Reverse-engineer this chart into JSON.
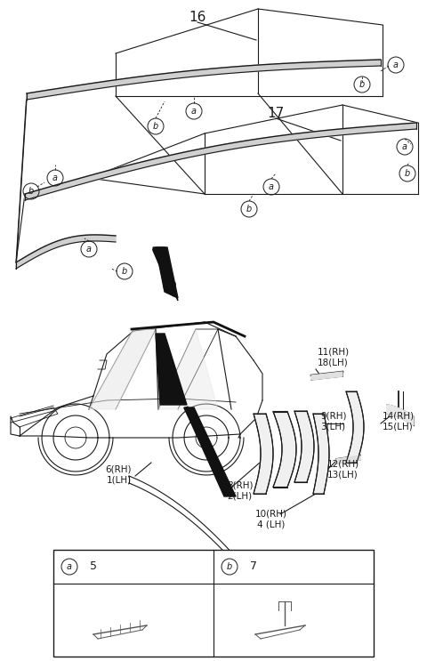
{
  "bg_color": "#ffffff",
  "fig_width": 4.8,
  "fig_height": 7.43,
  "dpi": 100,
  "dark": "#1a1a1a",
  "gray": "#666666",
  "label16": "16",
  "label17": "17",
  "part_labels": {
    "6RH_1LH": [
      "6(RH)",
      "1(LH)"
    ],
    "8RH_2LH": [
      "8(RH)",
      "2(LH)"
    ],
    "10RH_4LH": [
      "10(RH)",
      "4 (LH)"
    ],
    "11RH_18LH": [
      "11(RH)",
      "18(LH)"
    ],
    "9RH_3LH": [
      "9(RH)",
      "3(LH)"
    ],
    "12RH_13LH": [
      "12(RH)",
      "13(LH)"
    ],
    "14RH_15LH": [
      "14(RH)",
      "15(LH)"
    ]
  },
  "table_labels": [
    [
      "a",
      "5"
    ],
    [
      "b",
      "7"
    ]
  ]
}
